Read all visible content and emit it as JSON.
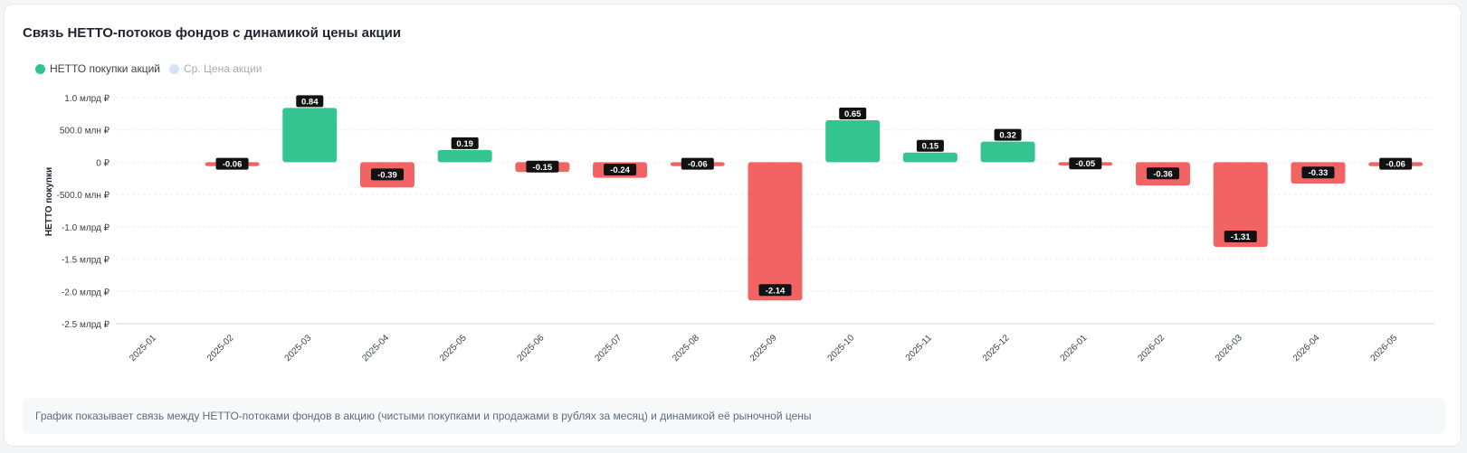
{
  "title": "Связь НЕТТО-потоков фондов с динамикой цены акции",
  "legend": [
    {
      "label": "НЕТТО покупки акций",
      "color": "#2ec48f",
      "active": true
    },
    {
      "label": "Ср. Цена акции",
      "color": "#d6e1f5",
      "active": false
    }
  ],
  "chart_data": {
    "type": "bar",
    "categories": [
      "2025-01",
      "2025-02",
      "2025-03",
      "2025-04",
      "2025-05",
      "2025-06",
      "2025-07",
      "2025-08",
      "2025-09",
      "2025-10",
      "2025-11",
      "2025-12",
      "2026-01",
      "2026-02",
      "2026-03",
      "2026-04",
      "2026-05"
    ],
    "series": [
      {
        "name": "НЕТТО покупки акций",
        "values": [
          null,
          -0.06,
          0.84,
          -0.39,
          0.19,
          -0.15,
          -0.24,
          -0.06,
          -2.14,
          0.65,
          0.15,
          0.32,
          -0.05,
          -0.36,
          -1.31,
          -0.33,
          -0.06
        ],
        "labels": [
          "",
          "-0.06",
          "0.84",
          "-0.39",
          "0.19",
          "-0.15",
          "-0.24",
          "-0.06",
          "-2.14",
          "0.65",
          "0.15",
          "0.32",
          "-0.05",
          "-0.36",
          "-1.31",
          "-0.33",
          "-0.06"
        ]
      }
    ],
    "ylabel": "НЕТТО покупки",
    "ylim": [
      -2.5,
      1.0
    ],
    "yticks": [
      {
        "value": 1.0,
        "label": "1.0 млрд ₽"
      },
      {
        "value": 0.5,
        "label": "500.0 млн ₽"
      },
      {
        "value": 0.0,
        "label": "0 ₽"
      },
      {
        "value": -0.5,
        "label": "-500.0 млн ₽"
      },
      {
        "value": -1.0,
        "label": "-1.0 млрд ₽"
      },
      {
        "value": -1.5,
        "label": "-1.5 млрд ₽"
      },
      {
        "value": -2.0,
        "label": "-2.0 млрд ₽"
      },
      {
        "value": -2.5,
        "label": "-2.5 млрд ₽"
      }
    ],
    "positive_color": "#33c48f",
    "negative_color": "#f26464",
    "grid": true
  },
  "footnote": "График показывает связь между НЕТТО-потоками фондов в акцию (чистыми покупками и продажами в рублях за месяц) и динамикой её рыночной цены"
}
